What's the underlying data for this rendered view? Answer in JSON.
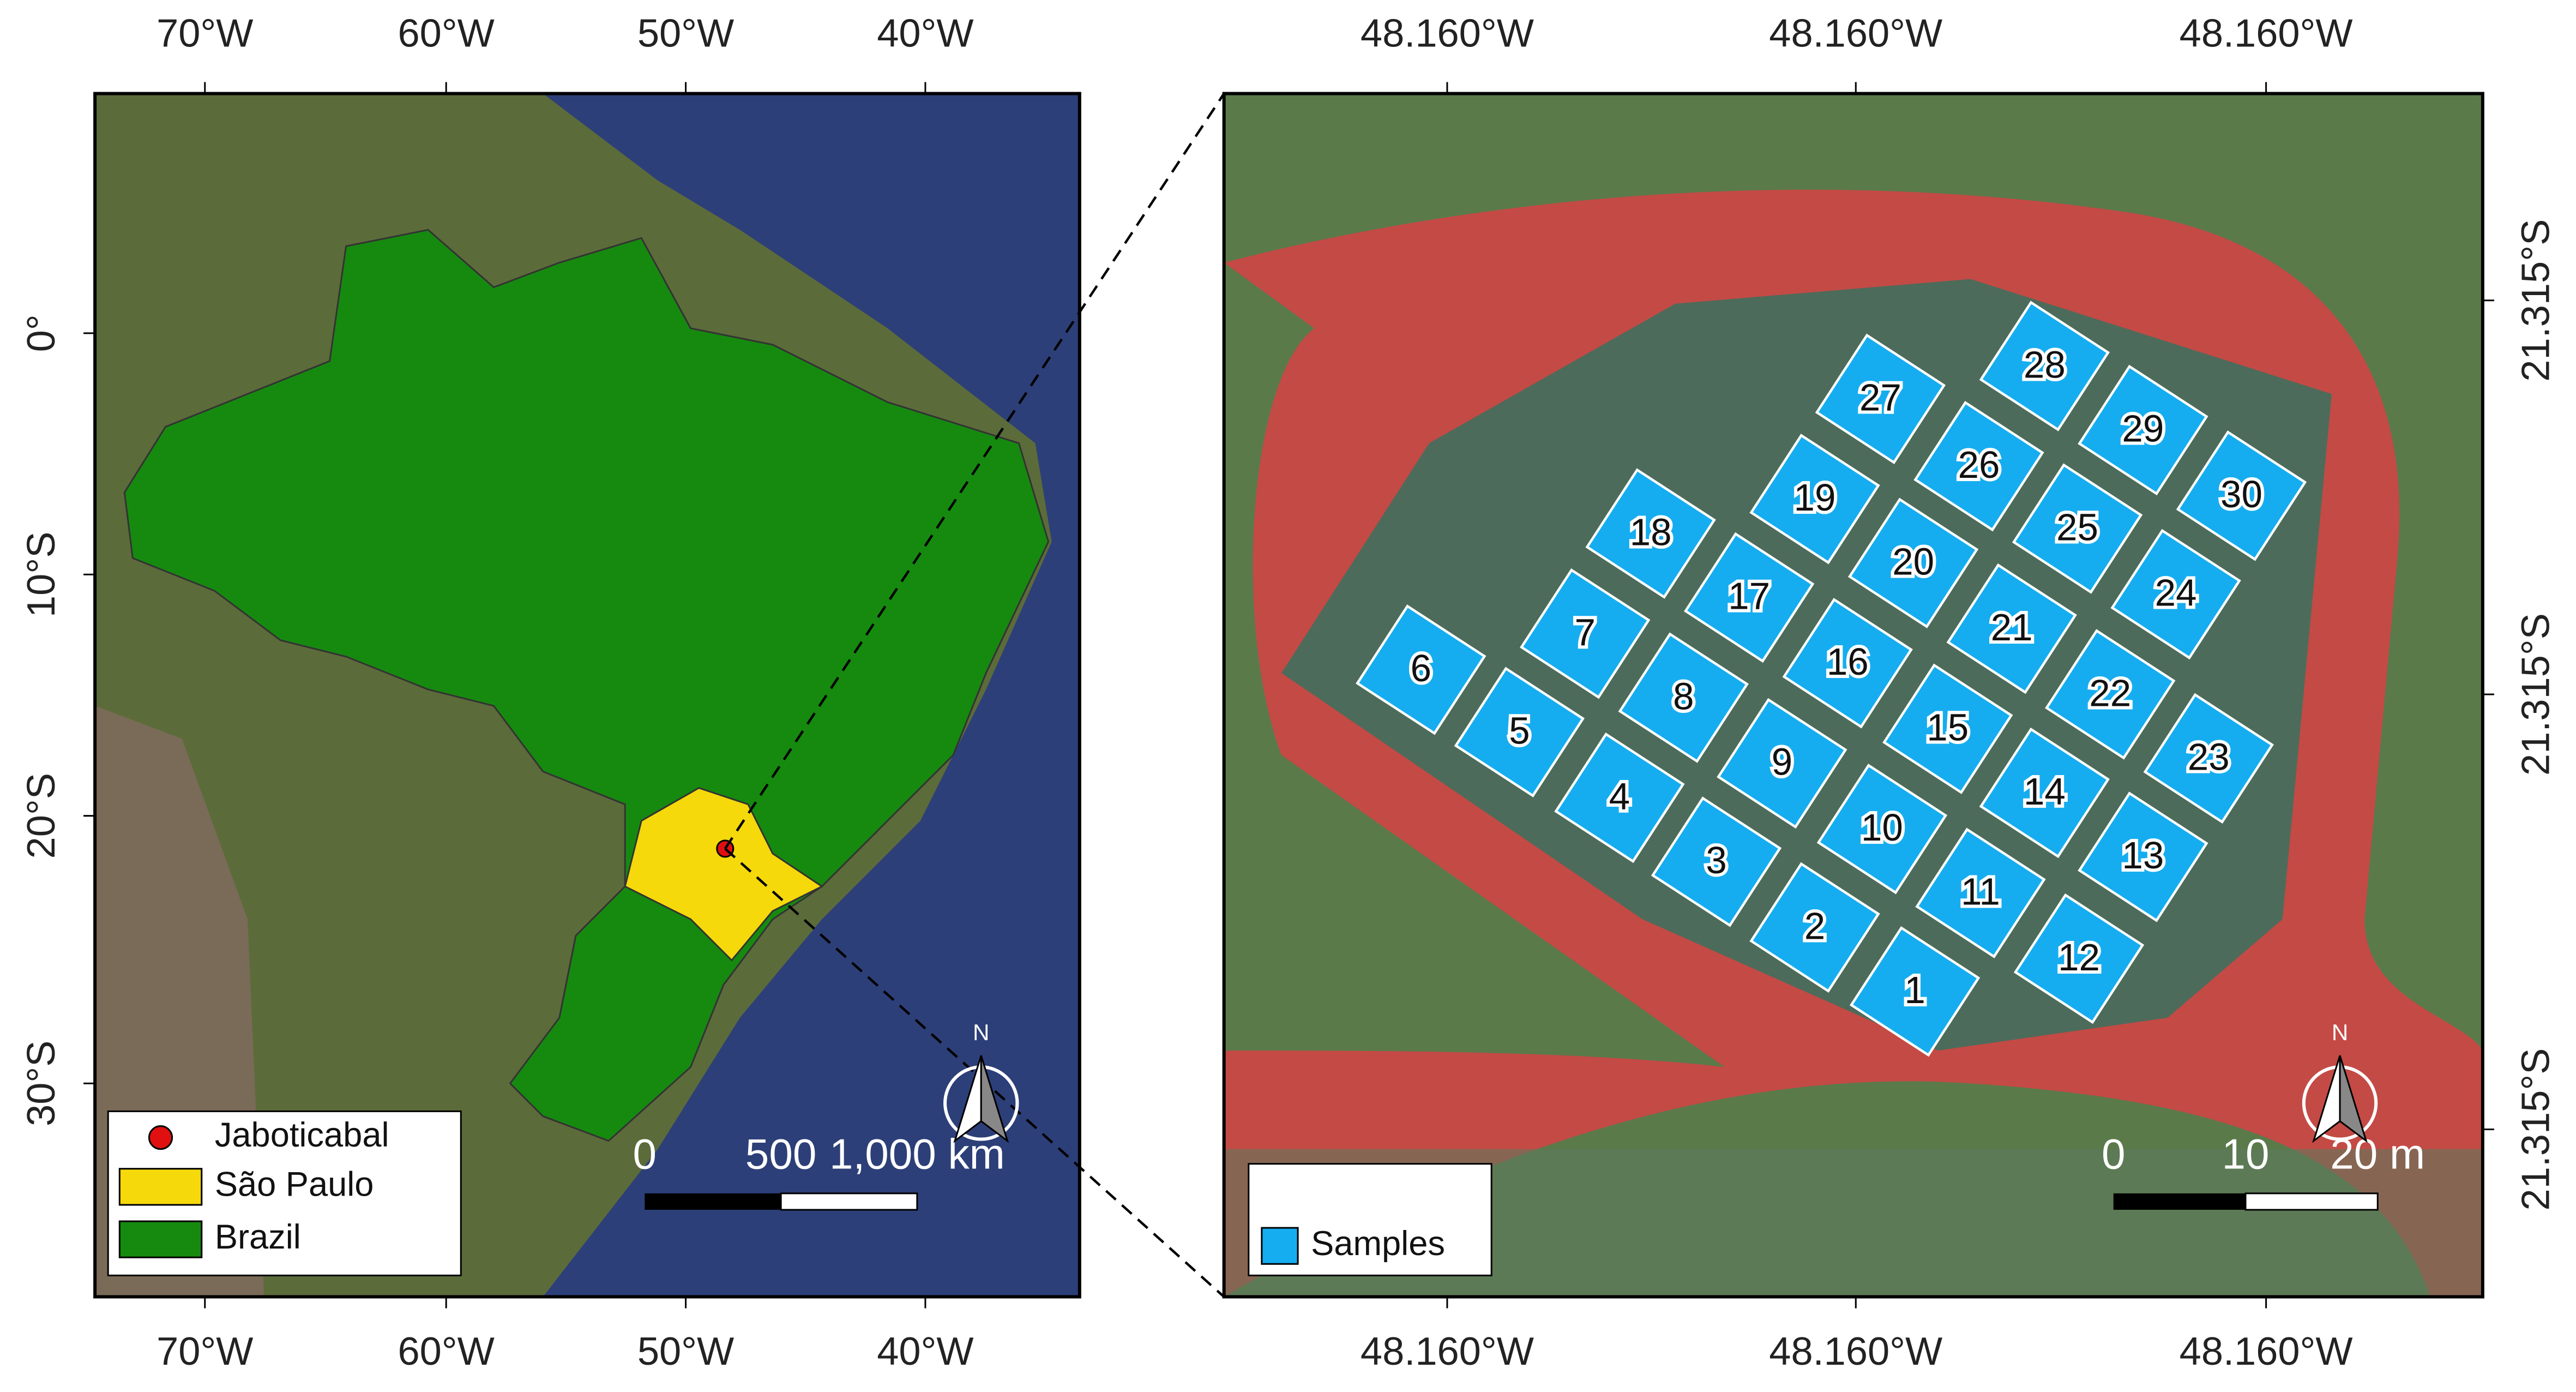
{
  "left_map": {
    "x_ticks": [
      "70°W",
      "60°W",
      "50°W",
      "40°W"
    ],
    "y_ticks": [
      "0°",
      "10°S",
      "20°S",
      "30°S"
    ],
    "legend": [
      "Jaboticabal",
      "São Paulo",
      "Brazil"
    ],
    "scale_labels": [
      "0",
      "500",
      "1,000 km"
    ],
    "north": "N"
  },
  "right_map": {
    "x_ticks": [
      "48.160°W",
      "48.160°W",
      "48.160°W"
    ],
    "y_ticks": [
      "21.315°S",
      "21.315°S",
      "21.315°S"
    ],
    "samples": [
      1,
      2,
      3,
      4,
      5,
      6,
      7,
      8,
      9,
      10,
      11,
      12,
      13,
      14,
      15,
      16,
      17,
      18,
      19,
      20,
      21,
      22,
      23,
      24,
      25,
      26,
      27,
      28,
      29,
      30
    ],
    "legend": [
      "Samples"
    ],
    "scale_labels": [
      "0",
      "10",
      "20 m"
    ],
    "north": "N"
  }
}
